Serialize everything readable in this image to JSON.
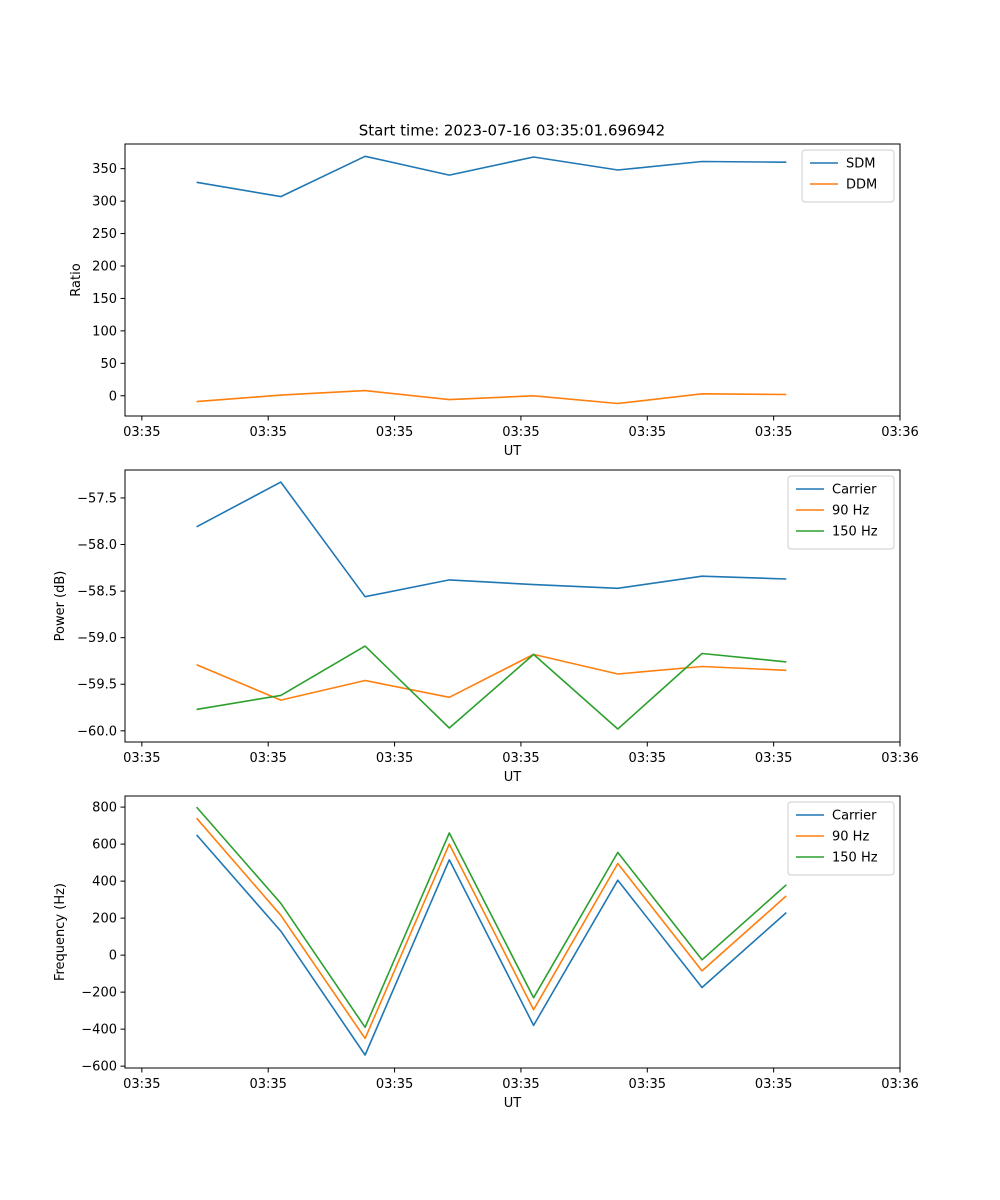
{
  "figure_title": "Start time: 2023-07-16 03:35:01.696942",
  "colors": {
    "blue": "#1f77b4",
    "orange": "#ff7f0e",
    "green": "#2ca02c",
    "axes": "#000000",
    "background": "#ffffff"
  },
  "chart_data": [
    {
      "type": "line",
      "title": "Start time: 2023-07-16 03:35:01.696942",
      "xlabel": "UT",
      "ylabel": "Ratio",
      "x_tick_labels": [
        "03:35",
        "03:35",
        "03:35",
        "03:35",
        "03:35",
        "03:35",
        "03:36"
      ],
      "y_ticks": [
        0,
        50,
        100,
        150,
        200,
        250,
        300,
        350
      ],
      "y_tick_labels": [
        "0",
        "50",
        "100",
        "150",
        "200",
        "250",
        "300",
        "350"
      ],
      "ylim": [
        -31.2,
        388
      ],
      "legend_position": "top-right",
      "x": [
        1,
        2,
        3,
        4,
        5,
        6,
        7,
        8
      ],
      "series": [
        {
          "name": "SDM",
          "color": "#1f77b4",
          "values": [
            329,
            307,
            369,
            340,
            368,
            348,
            361,
            360
          ]
        },
        {
          "name": "DDM",
          "color": "#ff7f0e",
          "values": [
            -9,
            1,
            8,
            -6,
            0,
            -12,
            3,
            2
          ]
        }
      ]
    },
    {
      "type": "line",
      "title": "",
      "xlabel": "UT",
      "ylabel": "Power (dB)",
      "x_tick_labels": [
        "03:35",
        "03:35",
        "03:35",
        "03:35",
        "03:35",
        "03:35",
        "03:36"
      ],
      "y_ticks": [
        -60.0,
        -59.5,
        -59.0,
        -58.5,
        -58.0,
        -57.5
      ],
      "y_tick_labels": [
        "−60.0",
        "−59.5",
        "−59.0",
        "−58.5",
        "−58.0",
        "−57.5"
      ],
      "ylim": [
        -60.12,
        -57.2
      ],
      "legend_position": "top-right",
      "x": [
        1,
        2,
        3,
        4,
        5,
        6,
        7,
        8
      ],
      "series": [
        {
          "name": "Carrier",
          "color": "#1f77b4",
          "values": [
            -57.81,
            -57.33,
            -58.56,
            -58.38,
            -58.43,
            -58.47,
            -58.34,
            -58.37
          ]
        },
        {
          "name": "90 Hz",
          "color": "#ff7f0e",
          "values": [
            -59.29,
            -59.67,
            -59.46,
            -59.64,
            -59.18,
            -59.39,
            -59.31,
            -59.35
          ]
        },
        {
          "name": "150 Hz",
          "color": "#2ca02c",
          "values": [
            -59.77,
            -59.62,
            -59.09,
            -59.97,
            -59.18,
            -59.98,
            -59.17,
            -59.26
          ]
        }
      ]
    },
    {
      "type": "line",
      "title": "",
      "xlabel": "UT",
      "ylabel": "Frequency (Hz)",
      "x_tick_labels": [
        "03:35",
        "03:35",
        "03:35",
        "03:35",
        "03:35",
        "03:35",
        "03:36"
      ],
      "y_ticks": [
        -600,
        -400,
        -200,
        0,
        200,
        400,
        600,
        800
      ],
      "y_tick_labels": [
        "−600",
        "−400",
        "−200",
        "0",
        "200",
        "400",
        "600",
        "800"
      ],
      "ylim": [
        -610,
        860
      ],
      "legend_position": "top-right",
      "x": [
        1,
        2,
        3,
        4,
        5,
        6,
        7,
        8
      ],
      "series": [
        {
          "name": "Carrier",
          "color": "#1f77b4",
          "values": [
            650,
            130,
            -540,
            515,
            -380,
            405,
            -175,
            230
          ]
        },
        {
          "name": "90 Hz",
          "color": "#ff7f0e",
          "values": [
            740,
            215,
            -450,
            600,
            -295,
            495,
            -85,
            320
          ]
        },
        {
          "name": "150 Hz",
          "color": "#2ca02c",
          "values": [
            800,
            280,
            -390,
            660,
            -230,
            555,
            -25,
            380
          ]
        }
      ]
    }
  ]
}
